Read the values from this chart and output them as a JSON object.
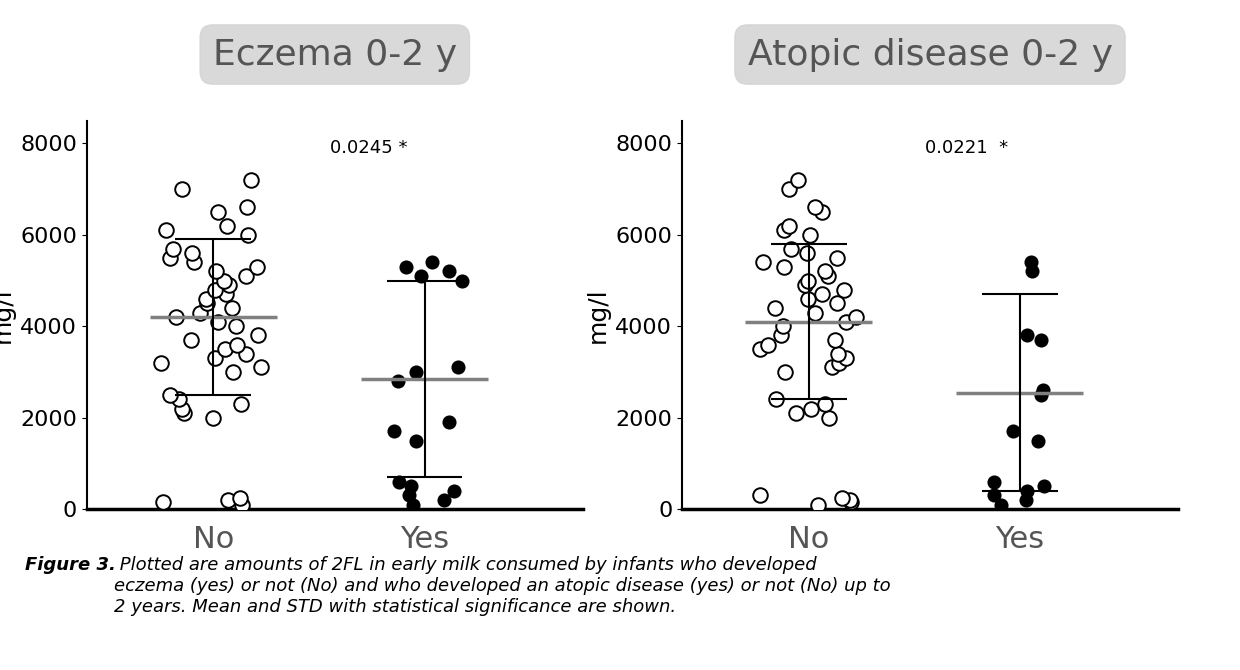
{
  "plot1_title": "Eczema 0-2 y",
  "plot2_title": "Atopic disease 0-2 y",
  "ylabel": "mg/l",
  "pvalue1": "0.0245 *",
  "pvalue2": "0.0221  *",
  "categories": [
    "No",
    "Yes"
  ],
  "ylim": [
    0,
    8500
  ],
  "yticks": [
    0,
    2000,
    4000,
    6000,
    8000
  ],
  "eczema_no_data": [
    100,
    150,
    200,
    250,
    2000,
    2100,
    2200,
    2300,
    2400,
    2500,
    3000,
    3100,
    3200,
    3300,
    3400,
    3500,
    3600,
    3700,
    3800,
    4000,
    4100,
    4200,
    4300,
    4400,
    4500,
    4600,
    4700,
    4800,
    4900,
    5000,
    5100,
    5200,
    5300,
    5400,
    5500,
    5600,
    5700,
    6000,
    6100,
    6200,
    6500,
    6600,
    7000,
    7200
  ],
  "eczema_no_mean": 4200,
  "eczema_no_std": 1700,
  "eczema_yes_data": [
    100,
    200,
    300,
    400,
    500,
    600,
    1500,
    1700,
    1900,
    2800,
    3000,
    3100,
    5000,
    5100,
    5200,
    5300,
    5400
  ],
  "eczema_yes_mean": 2850,
  "eczema_yes_std": 2150,
  "atopic_no_data": [
    100,
    150,
    200,
    250,
    300,
    2000,
    2100,
    2200,
    2300,
    2400,
    3000,
    3100,
    3200,
    3300,
    3400,
    3500,
    3600,
    3700,
    3800,
    4000,
    4100,
    4200,
    4300,
    4400,
    4500,
    4600,
    4700,
    4800,
    4900,
    5000,
    5100,
    5200,
    5300,
    5400,
    5500,
    5600,
    5700,
    6000,
    6100,
    6200,
    6500,
    6600,
    7000,
    7200
  ],
  "atopic_no_mean": 4100,
  "atopic_no_std": 1700,
  "atopic_yes_data": [
    100,
    200,
    300,
    400,
    500,
    600,
    1500,
    1700,
    2500,
    2600,
    3700,
    3800,
    5200,
    5400
  ],
  "atopic_yes_mean": 2550,
  "atopic_yes_std": 2150,
  "title_bg_color": "#d3d3d3",
  "title_fontsize": 26,
  "tick_fontsize": 16,
  "axis_label_fontsize": 18,
  "pvalue_fontsize": 13,
  "caption_bold": "Figure 3.",
  "caption_italic": " Plotted are amounts of 2FL in early milk consumed by infants who developed\neczema (yes) or not (No) and who developed an atopic disease (yes) or not (No) up to\n2 years. Mean and STD with statistical significance are shown.",
  "caption_fontsize": 13
}
